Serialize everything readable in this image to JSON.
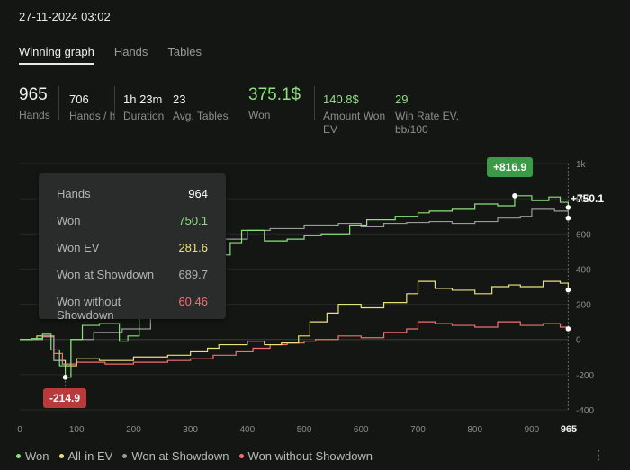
{
  "header": {
    "date": "27-11-2024 03:02"
  },
  "tabs": [
    {
      "label": "Winning graph",
      "active": true
    },
    {
      "label": "Hands",
      "active": false
    },
    {
      "label": "Tables",
      "active": false
    }
  ],
  "stats": {
    "hands": {
      "value": "965",
      "label": "Hands"
    },
    "hands_per_h": {
      "value": "706",
      "label": "Hands / h"
    },
    "duration": {
      "value": "1h 23m",
      "label": "Duration"
    },
    "avg_tables": {
      "value": "23",
      "label": "Avg. Tables"
    },
    "won": {
      "value": "375.1$",
      "label": "Won"
    },
    "amount_won_ev": {
      "value": "140.8$",
      "label": "Amount Won EV"
    },
    "win_rate_ev": {
      "value": "29",
      "label": "Win Rate EV, bb/100"
    }
  },
  "tooltip": {
    "rows": [
      {
        "key": "Hands",
        "value": "964",
        "color": "#ffffff"
      },
      {
        "key": "Won",
        "value": "750.1",
        "color": "#8ee07f"
      },
      {
        "key": "Won EV",
        "value": "281.6",
        "color": "#e9e27a"
      },
      {
        "key": "Won at Showdown",
        "value": "689.7",
        "color": "#b0b0b0"
      },
      {
        "key": "Won without Showdown",
        "value": "60.46",
        "color": "#f07070"
      }
    ]
  },
  "badges": {
    "max": "+816.9",
    "min": "-214.9",
    "current": "+750.1",
    "max_color": "#3a9a46",
    "min_color": "#b83a3a"
  },
  "legend": [
    {
      "label": "Won",
      "color": "#8ee07f"
    },
    {
      "label": "All-in EV",
      "color": "#e9e27a"
    },
    {
      "label": "Won at Showdown",
      "color": "#9a9a9a"
    },
    {
      "label": "Won without Showdown",
      "color": "#f07070"
    }
  ],
  "menu_icon": "more-vert-icon",
  "chart_data": {
    "type": "line",
    "x_ticks": [
      "0",
      "100",
      "200",
      "300",
      "400",
      "500",
      "600",
      "700",
      "800",
      "900"
    ],
    "x_end_label": "965",
    "y_ticks": [
      "1k",
      "800",
      "600",
      "400",
      "200",
      "0",
      "-200",
      "-400"
    ],
    "xlim": [
      0,
      965
    ],
    "ylim": [
      -400,
      1000
    ],
    "series": [
      {
        "name": "Won",
        "color": "#8ee07f",
        "points": [
          [
            0,
            0
          ],
          [
            20,
            5
          ],
          [
            40,
            30
          ],
          [
            55,
            -60
          ],
          [
            70,
            -150
          ],
          [
            80,
            -214.9
          ],
          [
            90,
            0
          ],
          [
            110,
            80
          ],
          [
            140,
            90
          ],
          [
            175,
            -10
          ],
          [
            190,
            20
          ],
          [
            210,
            120
          ],
          [
            240,
            210
          ],
          [
            270,
            270
          ],
          [
            290,
            400
          ],
          [
            320,
            480
          ],
          [
            370,
            550
          ],
          [
            390,
            620
          ],
          [
            430,
            560
          ],
          [
            470,
            570
          ],
          [
            500,
            590
          ],
          [
            530,
            600
          ],
          [
            580,
            650
          ],
          [
            610,
            680
          ],
          [
            640,
            680
          ],
          [
            660,
            700
          ],
          [
            700,
            720
          ],
          [
            720,
            730
          ],
          [
            760,
            740
          ],
          [
            800,
            770
          ],
          [
            840,
            760
          ],
          [
            870,
            816.9
          ],
          [
            900,
            790
          ],
          [
            930,
            810
          ],
          [
            950,
            780
          ],
          [
            964,
            750.1
          ]
        ]
      },
      {
        "name": "All-in EV",
        "color": "#e9e27a",
        "points": [
          [
            0,
            0
          ],
          [
            30,
            20
          ],
          [
            60,
            -120
          ],
          [
            80,
            -150
          ],
          [
            100,
            -110
          ],
          [
            140,
            -120
          ],
          [
            200,
            -100
          ],
          [
            260,
            -90
          ],
          [
            300,
            -70
          ],
          [
            330,
            -50
          ],
          [
            350,
            -30
          ],
          [
            400,
            -10
          ],
          [
            430,
            -30
          ],
          [
            460,
            -20
          ],
          [
            490,
            20
          ],
          [
            510,
            100
          ],
          [
            540,
            150
          ],
          [
            560,
            200
          ],
          [
            600,
            180
          ],
          [
            640,
            210
          ],
          [
            680,
            260
          ],
          [
            700,
            330
          ],
          [
            730,
            290
          ],
          [
            760,
            280
          ],
          [
            800,
            260
          ],
          [
            830,
            300
          ],
          [
            860,
            310
          ],
          [
            880,
            300
          ],
          [
            920,
            330
          ],
          [
            950,
            320
          ],
          [
            964,
            281.6
          ]
        ]
      },
      {
        "name": "Won at Showdown",
        "color": "#9a9a9a",
        "points": [
          [
            0,
            0
          ],
          [
            40,
            20
          ],
          [
            60,
            -120
          ],
          [
            75,
            -140
          ],
          [
            90,
            0
          ],
          [
            130,
            40
          ],
          [
            180,
            60
          ],
          [
            230,
            300
          ],
          [
            250,
            330
          ],
          [
            280,
            400
          ],
          [
            300,
            540
          ],
          [
            320,
            560
          ],
          [
            350,
            570
          ],
          [
            400,
            620
          ],
          [
            440,
            630
          ],
          [
            500,
            650
          ],
          [
            560,
            660
          ],
          [
            600,
            640
          ],
          [
            640,
            660
          ],
          [
            680,
            665
          ],
          [
            720,
            670
          ],
          [
            760,
            660
          ],
          [
            800,
            670
          ],
          [
            840,
            690
          ],
          [
            880,
            700
          ],
          [
            900,
            740
          ],
          [
            940,
            730
          ],
          [
            964,
            689.7
          ]
        ]
      },
      {
        "name": "Won without Showdown",
        "color": "#f07070",
        "points": [
          [
            0,
            0
          ],
          [
            40,
            15
          ],
          [
            60,
            -80
          ],
          [
            75,
            -140
          ],
          [
            100,
            -130
          ],
          [
            150,
            -140
          ],
          [
            200,
            -130
          ],
          [
            260,
            -120
          ],
          [
            300,
            -110
          ],
          [
            340,
            -90
          ],
          [
            380,
            -70
          ],
          [
            410,
            -50
          ],
          [
            440,
            -30
          ],
          [
            470,
            -20
          ],
          [
            500,
            -10
          ],
          [
            520,
            0
          ],
          [
            560,
            20
          ],
          [
            600,
            10
          ],
          [
            640,
            40
          ],
          [
            680,
            60
          ],
          [
            700,
            100
          ],
          [
            730,
            90
          ],
          [
            760,
            80
          ],
          [
            800,
            70
          ],
          [
            840,
            100
          ],
          [
            880,
            80
          ],
          [
            920,
            90
          ],
          [
            950,
            70
          ],
          [
            964,
            60.46
          ]
        ]
      }
    ]
  }
}
